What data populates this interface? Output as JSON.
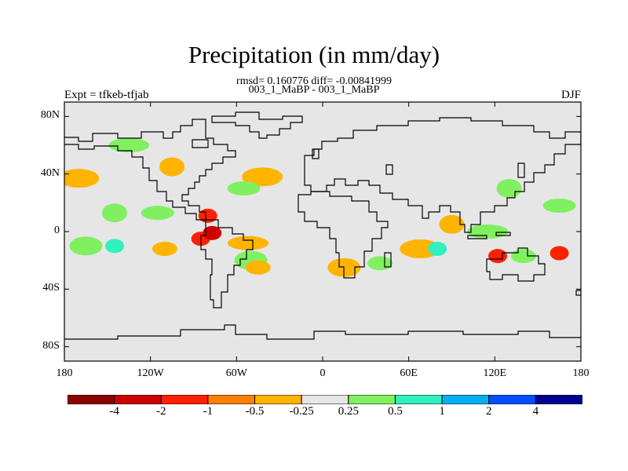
{
  "title": "Precipitation (in mm/day)",
  "stats": "rmsd= 0.160776 diff= -0.00841999",
  "experiments": "003_1_MaBP - 003_1_MaBP",
  "expt_label": "Expt = tfkeb-tfjab",
  "season": "DJF",
  "axes": {
    "lat_ticks": [
      "80N",
      "40N",
      "0",
      "40S",
      "80S"
    ],
    "lat_values": [
      80,
      40,
      0,
      -40,
      -80
    ],
    "lon_ticks": [
      "180",
      "120W",
      "60W",
      "0",
      "60E",
      "120E",
      "180"
    ],
    "lon_values": [
      -180,
      -120,
      -60,
      0,
      60,
      120,
      180
    ],
    "lat_range": [
      -90,
      90
    ],
    "lon_range": [
      -180,
      180
    ]
  },
  "colorbar": {
    "labels": [
      "-4",
      "-2",
      "-1",
      "-0.5",
      "-0.25",
      "0.25",
      "0.5",
      "1",
      "2",
      "4"
    ],
    "colors": [
      "#8b0000",
      "#cd0000",
      "#ff2000",
      "#ff7f00",
      "#ffb400",
      "#e6e6e6",
      "#80f060",
      "#30f0c0",
      "#00b0f0",
      "#0050ff",
      "#000090"
    ]
  },
  "background_color": "#e6e6e6",
  "contours": [
    {
      "lon": -170,
      "lat": 37,
      "level": "-0.5"
    },
    {
      "lon": -115,
      "lat": 13,
      "level": "0.5"
    },
    {
      "lon": -145,
      "lat": 13,
      "level": "0.5"
    },
    {
      "lon": -145,
      "lat": -10,
      "level": "1"
    },
    {
      "lon": -165,
      "lat": -10,
      "level": "0.5"
    },
    {
      "lon": -110,
      "lat": -12,
      "level": "-0.5"
    },
    {
      "lon": -85,
      "lat": -5,
      "level": "-1"
    },
    {
      "lon": -77,
      "lat": -1,
      "level": "-2"
    },
    {
      "lon": -80,
      "lat": 11,
      "level": "-1"
    },
    {
      "lon": -52,
      "lat": -8,
      "level": "-0.5"
    },
    {
      "lon": -50,
      "lat": -20,
      "level": "0.5"
    },
    {
      "lon": -45,
      "lat": -25,
      "level": "-0.5"
    },
    {
      "lon": -42,
      "lat": 38,
      "level": "-0.5"
    },
    {
      "lon": -55,
      "lat": 30,
      "level": "0.5"
    },
    {
      "lon": -105,
      "lat": 45,
      "level": "-0.5"
    },
    {
      "lon": -135,
      "lat": 60,
      "level": "0.5"
    },
    {
      "lon": 15,
      "lat": -25,
      "level": "-0.5"
    },
    {
      "lon": 40,
      "lat": -22,
      "level": "0.5"
    },
    {
      "lon": 68,
      "lat": -12,
      "level": "-0.5"
    },
    {
      "lon": 80,
      "lat": -12,
      "level": "1"
    },
    {
      "lon": 90,
      "lat": 5,
      "level": "-0.5"
    },
    {
      "lon": 115,
      "lat": 0,
      "level": "0.5"
    },
    {
      "lon": 122,
      "lat": -17,
      "level": "-1"
    },
    {
      "lon": 140,
      "lat": -17,
      "level": "0.5"
    },
    {
      "lon": 165,
      "lat": -15,
      "level": "-1"
    },
    {
      "lon": 165,
      "lat": 18,
      "level": "0.5"
    },
    {
      "lon": 130,
      "lat": 30,
      "level": "0.5"
    }
  ]
}
